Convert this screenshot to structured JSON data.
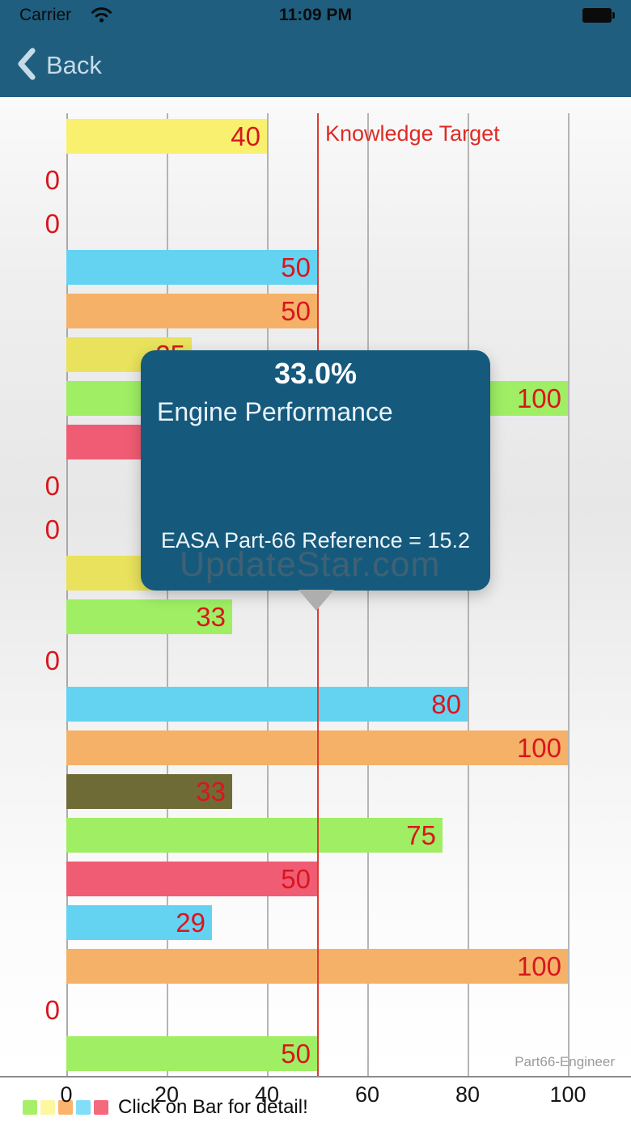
{
  "status_bar": {
    "carrier": "Carrier",
    "time": "11:09 PM",
    "icons": [
      "wifi-icon",
      "battery-icon"
    ]
  },
  "nav_bar": {
    "back_label": "Back"
  },
  "chart": {
    "target_label": "Knowledge Target",
    "watermark": "UpdateStar.com",
    "branding": "Part66-Engineer"
  },
  "tooltip": {
    "percent": "33.0%",
    "title": "Engine Performance",
    "reference": "EASA Part-66 Reference = 15.2"
  },
  "footer": {
    "legend_note": "Click on Bar for detail!",
    "legend_colors": [
      "#a7ef68",
      "#fdf7a0",
      "#fbb46b",
      "#81def8",
      "#f4697d"
    ]
  },
  "colors": {
    "header_bg": "#1f5e7f",
    "tooltip_bg": "#155a7d",
    "label_red": "#d8161e",
    "target_line_red": "#e03a2f",
    "back_tint": "#c6dbe7"
  },
  "chart_data": {
    "type": "bar",
    "orientation": "horizontal",
    "xlim": [
      0,
      100
    ],
    "x_ticks": [
      0,
      20,
      40,
      60,
      80,
      100
    ],
    "grid": true,
    "target_line": {
      "value": 50,
      "label": "Knowledge Target"
    },
    "bars": [
      {
        "color": "yellow-light",
        "hex": "#f8f06e",
        "value": 40,
        "label": "40"
      },
      {
        "color": "none",
        "hex": "",
        "value": 0,
        "label": "0"
      },
      {
        "color": "none",
        "hex": "",
        "value": 0,
        "label": "0"
      },
      {
        "color": "cyan",
        "hex": "#63d3f1",
        "value": 50,
        "label": "50"
      },
      {
        "color": "orange",
        "hex": "#f4b167",
        "value": 50,
        "label": "50"
      },
      {
        "color": "yellow",
        "hex": "#e9e25c",
        "value": 25,
        "label": "25",
        "label_occluded_by_tooltip": true
      },
      {
        "color": "green",
        "hex": "#9fee63",
        "value": 100,
        "label": "100"
      },
      {
        "color": "pink",
        "hex": "#f05c73",
        "value": 45,
        "label": "",
        "occluded_by_tooltip": true,
        "value_estimated": true
      },
      {
        "color": "none",
        "hex": "",
        "value": 0,
        "label": "0"
      },
      {
        "color": "none",
        "hex": "",
        "value": 0,
        "label": "0"
      },
      {
        "color": "yellow",
        "hex": "#e9e25c",
        "value": 45,
        "label": "",
        "occluded_by_tooltip": true,
        "value_estimated": true
      },
      {
        "color": "green",
        "hex": "#9fee63",
        "value": 33,
        "label": "33",
        "selected": true
      },
      {
        "color": "none",
        "hex": "",
        "value": 0,
        "label": "0"
      },
      {
        "color": "cyan",
        "hex": "#63d3f1",
        "value": 80,
        "label": "80"
      },
      {
        "color": "orange",
        "hex": "#f4b167",
        "value": 100,
        "label": "100"
      },
      {
        "color": "olive",
        "hex": "#6f6b36",
        "value": 33,
        "label": "33"
      },
      {
        "color": "green",
        "hex": "#9fee63",
        "value": 75,
        "label": "75"
      },
      {
        "color": "pink",
        "hex": "#f05c73",
        "value": 50,
        "label": "50"
      },
      {
        "color": "cyan",
        "hex": "#63d3f1",
        "value": 29,
        "label": "29"
      },
      {
        "color": "orange",
        "hex": "#f4b167",
        "value": 100,
        "label": "100"
      },
      {
        "color": "none",
        "hex": "",
        "value": 0,
        "label": "0"
      },
      {
        "color": "green",
        "hex": "#9fee63",
        "value": 50,
        "label": "50"
      }
    ],
    "selected_bar": {
      "index": 11,
      "percent": "33.0%",
      "title": "Engine Performance",
      "reference": "EASA Part-66 Reference = 15.2"
    }
  }
}
